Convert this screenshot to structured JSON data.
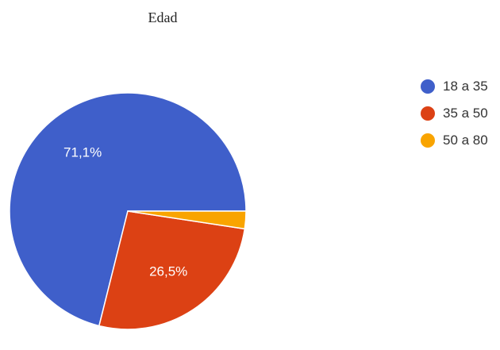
{
  "chart_data": {
    "type": "pie",
    "title": "Edad",
    "slices": [
      {
        "label": "18 a 35",
        "value": 71.1,
        "display": "71,1%",
        "color": "#3f5fca"
      },
      {
        "label": "35 a 50",
        "value": 26.5,
        "display": "26,5%",
        "color": "#dc4114"
      },
      {
        "label": "50 a 80",
        "value": 2.4,
        "display": "",
        "color": "#f9a400"
      }
    ],
    "legend": "right"
  }
}
